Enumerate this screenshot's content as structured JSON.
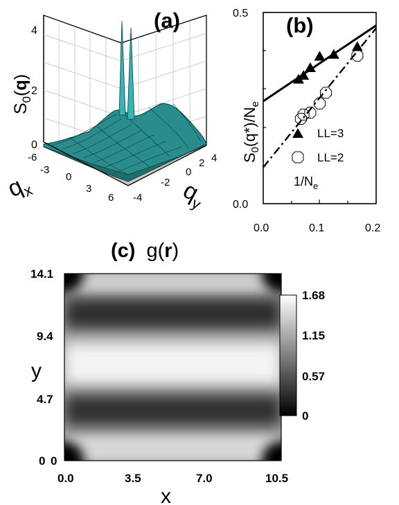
{
  "chart_data": [
    {
      "id": "a",
      "type": "surface3d",
      "panel_label": "(a)",
      "zlabel_prefix": "S",
      "zlabel_sub": "0",
      "zlabel_arg_open": "(",
      "zlabel_arg": "q",
      "zlabel_arg_close": ")",
      "xlabel_main": "q",
      "xlabel_sub": "x",
      "ylabel_main": "q",
      "ylabel_sub": "y",
      "z_ticks": [
        "0",
        "2",
        "4"
      ],
      "x_ticks": [
        "-6",
        "-3",
        "0",
        "3",
        "6"
      ],
      "y_ticks": [
        "-4",
        "-2",
        "0",
        "2",
        "4"
      ],
      "zlim": [
        0,
        4.3
      ],
      "colors": {
        "surface": "#2a8c8c",
        "peak": "#39b3b3",
        "floor": "#c8c8c8"
      }
    },
    {
      "id": "b",
      "type": "scatter",
      "panel_label": "(b)",
      "ylabel_prefix": "S",
      "ylabel_sub": "0",
      "ylabel_arg": "(q*)/N",
      "ylabel_arg_sub": "e",
      "xlabel_prefix": "1/N",
      "xlabel_sub": "e",
      "xlim": [
        0,
        0.2
      ],
      "ylim": [
        0,
        0.5
      ],
      "x_ticks": [
        "0.0",
        "0.1",
        "0.2"
      ],
      "y_ticks": [
        "0.0",
        "0.5"
      ],
      "series": [
        {
          "name": "LL=3",
          "marker": "filled-triangle",
          "x": [
            0.0625,
            0.0714,
            0.0833,
            0.1,
            0.125,
            0.1667
          ],
          "y": [
            0.325,
            0.335,
            0.355,
            0.385,
            0.39,
            0.41
          ],
          "fit": {
            "intercept": 0.268,
            "slope": 0.99,
            "style": "solid"
          }
        },
        {
          "name": "LL=2",
          "marker": "open-octagon",
          "x": [
            0.0667,
            0.0714,
            0.0833,
            0.1,
            0.1111,
            0.1667
          ],
          "y": [
            0.222,
            0.233,
            0.238,
            0.262,
            0.29,
            0.387
          ],
          "fit": {
            "intercept": 0.095,
            "slope": 1.82,
            "style": "dash-dot"
          }
        }
      ]
    },
    {
      "id": "c",
      "type": "heatmap",
      "panel_label": "(c)",
      "title_fn": "g(",
      "title_arg": "r",
      "title_close": ")",
      "xlabel": "x",
      "ylabel": "y",
      "xlim": [
        0,
        10.5
      ],
      "ylim": [
        0,
        14.1
      ],
      "x_ticks": [
        "0.0",
        "3.5",
        "7.0",
        "10.5"
      ],
      "y_ticks": [
        "0",
        "4.7",
        "9.4",
        "14.1"
      ],
      "x_corner_tick": "0",
      "colorbar_ticks": [
        "0",
        "0.57",
        "1.15",
        "1.68"
      ],
      "colorbar_range": [
        0,
        1.68
      ],
      "colormap": "grayscale"
    }
  ]
}
